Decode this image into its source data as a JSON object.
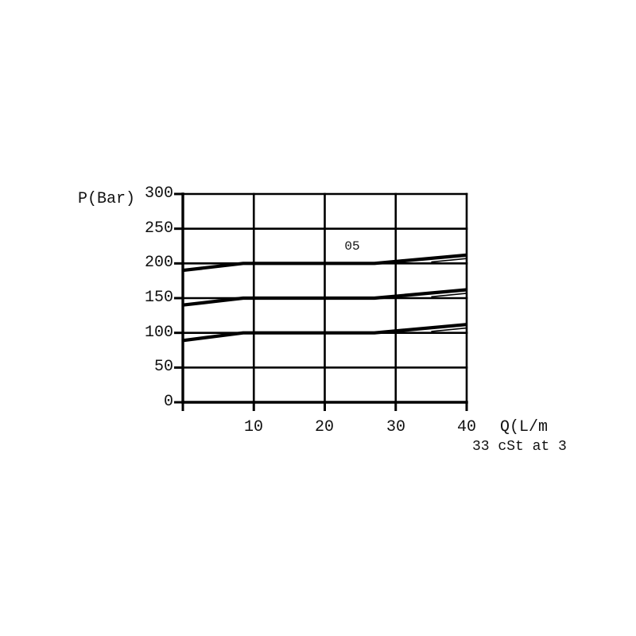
{
  "page": {
    "background": "#ffffff"
  },
  "colors": {
    "line": "#000000",
    "text": "#111111"
  },
  "chart_data": {
    "type": "line",
    "title": "",
    "ylabel": "P(Bar)",
    "xlabel": "Q(L/m",
    "note": "33 cSt at 3",
    "xlim": [
      0,
      40
    ],
    "ylim": [
      0,
      300
    ],
    "xticks": [
      10,
      20,
      30,
      40
    ],
    "yticks": [
      300,
      250,
      200,
      150,
      100,
      50,
      0
    ],
    "grid": true,
    "legend_position": "none",
    "annotation": {
      "text": "05",
      "x": 24,
      "y": 222
    },
    "series": [
      {
        "name": "relief-curve-200-bar",
        "points": [
          [
            0,
            190
          ],
          [
            8.5,
            200
          ],
          [
            27,
            200
          ],
          [
            40,
            212
          ]
        ],
        "stroke_px": 4.2
      },
      {
        "name": "relief-curve-200-bar-lower",
        "points": [
          [
            35,
            202
          ],
          [
            40,
            207
          ]
        ],
        "stroke_px": 1.6
      },
      {
        "name": "relief-curve-150-bar",
        "points": [
          [
            0,
            140
          ],
          [
            8.5,
            150
          ],
          [
            27,
            150
          ],
          [
            40,
            162
          ]
        ],
        "stroke_px": 4.2
      },
      {
        "name": "relief-curve-150-bar-lower",
        "points": [
          [
            35,
            152
          ],
          [
            40,
            157
          ]
        ],
        "stroke_px": 1.6
      },
      {
        "name": "relief-curve-100-bar",
        "points": [
          [
            0,
            89
          ],
          [
            8.5,
            100
          ],
          [
            27,
            100
          ],
          [
            40,
            112
          ]
        ],
        "stroke_px": 4.2
      },
      {
        "name": "relief-curve-100-bar-lower",
        "points": [
          [
            35,
            102
          ],
          [
            40,
            107
          ]
        ],
        "stroke_px": 1.6
      }
    ]
  }
}
